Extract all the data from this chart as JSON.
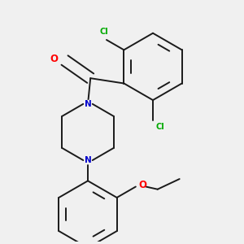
{
  "background_color": "#f0f0f0",
  "bond_color": "#1a1a1a",
  "atom_colors": {
    "O": "#ff0000",
    "N": "#0000cc",
    "Cl": "#00aa00",
    "C": "#1a1a1a"
  },
  "figsize": [
    3.0,
    3.0
  ],
  "dpi": 100
}
